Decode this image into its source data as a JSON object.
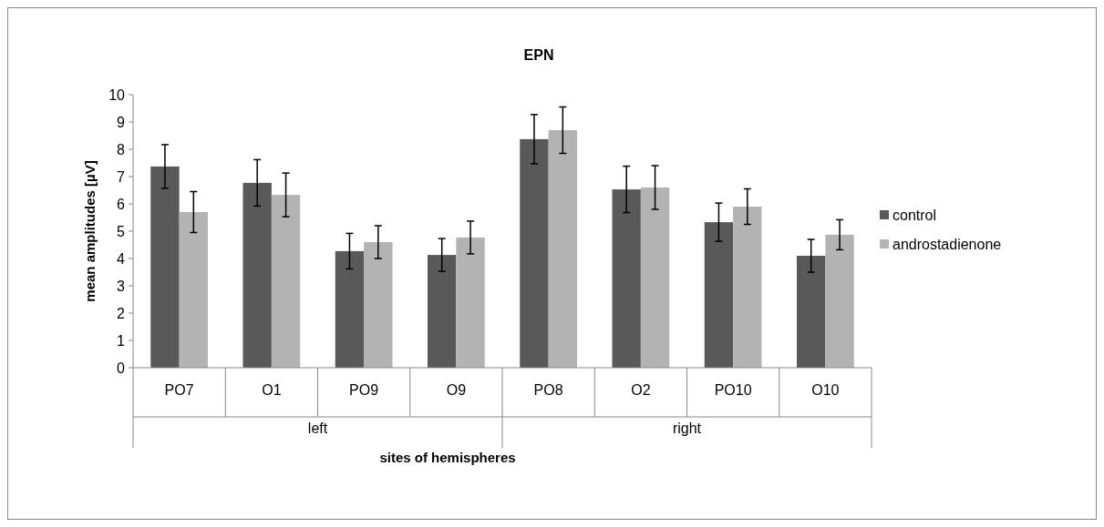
{
  "chart_data": {
    "type": "bar",
    "title": "EPN",
    "xlabel": "sites of hemispheres",
    "ylabel": "mean amplitudes [µV]",
    "categories": [
      "PO7",
      "O1",
      "PO9",
      "O9",
      "PO8",
      "O2",
      "PO10",
      "O10"
    ],
    "annotations": [
      "left",
      "right"
    ],
    "series": [
      {
        "name": "control",
        "color": "#595959",
        "values": [
          7.37,
          6.77,
          4.27,
          4.13,
          8.37,
          6.53,
          5.33,
          4.1
        ],
        "errors": [
          0.8,
          0.85,
          0.65,
          0.6,
          0.9,
          0.85,
          0.7,
          0.6
        ]
      },
      {
        "name": "androstadienone",
        "color": "#b3b3b3",
        "values": [
          5.7,
          6.33,
          4.6,
          4.77,
          8.7,
          6.6,
          5.9,
          4.87
        ],
        "errors": [
          0.75,
          0.8,
          0.6,
          0.6,
          0.85,
          0.8,
          0.65,
          0.55
        ]
      }
    ],
    "ylim": [
      0,
      10
    ],
    "yticks": [
      0,
      1,
      2,
      3,
      4,
      5,
      6,
      7,
      8,
      9,
      10
    ],
    "legend": "right"
  }
}
